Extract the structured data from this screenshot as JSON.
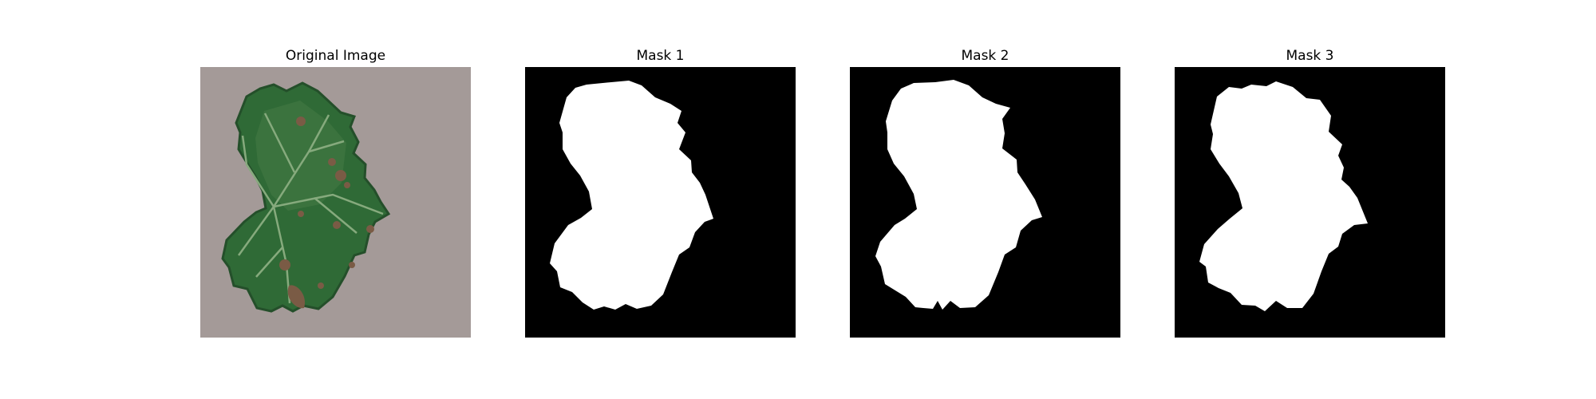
{
  "figure": {
    "panels": [
      {
        "title": "Original Image",
        "kind": "photo",
        "content": "grape-leaf-photo"
      },
      {
        "title": "Mask 1",
        "kind": "mask",
        "content": "binary-mask"
      },
      {
        "title": "Mask 2",
        "kind": "mask",
        "content": "binary-mask"
      },
      {
        "title": "Mask 3",
        "kind": "mask",
        "content": "binary-mask"
      }
    ]
  },
  "colors": {
    "background": "#ffffff",
    "mask_background": "#000000",
    "mask_foreground": "#ffffff",
    "photo_background": "#a49a98",
    "leaf_dark": "#244f2a",
    "leaf_mid": "#2f6a36",
    "leaf_light": "#4b7f4a",
    "vein": "#86aa7d",
    "spot": "#7a5b45"
  }
}
